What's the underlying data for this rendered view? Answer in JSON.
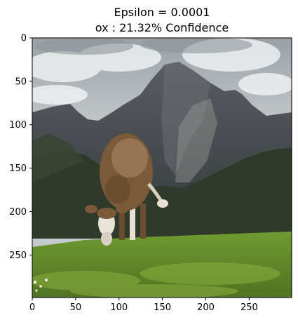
{
  "figure": {
    "title_line1": "Epsilon = 0.0001",
    "title_line2": "ox : 21.32% Confidence",
    "x_ticks": [
      "0",
      "50",
      "100",
      "150",
      "200",
      "250"
    ],
    "y_ticks": [
      "0",
      "50",
      "100",
      "150",
      "200",
      "250"
    ],
    "x_range": [
      0,
      299
    ],
    "y_range": [
      0,
      299
    ]
  },
  "image": {
    "subject": "cow grazing on alpine meadow with mountains",
    "colors": {
      "sky": "#cfd3d6",
      "cloud_dark": "#8e969c",
      "mountain": "#4f535a",
      "mountain_dark": "#2e3338",
      "forest": "#2f3a2c",
      "grass": "#5f8a2a",
      "grass_light": "#8bb040",
      "cow_brown": "#7a5a38",
      "cow_white": "#e9e2d6"
    }
  }
}
